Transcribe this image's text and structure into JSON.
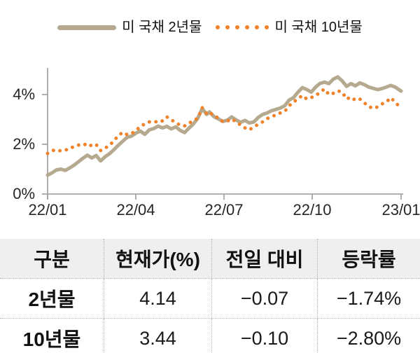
{
  "chart_data": {
    "type": "line",
    "title": "",
    "legend_position": "top-center",
    "x_axis": {
      "tick_labels": [
        "22/01",
        "22/04",
        "22/07",
        "22/10",
        "23/01"
      ],
      "range_months": [
        0,
        12
      ],
      "grid": false
    },
    "y_axis": {
      "tick_labels": [
        "0%",
        "2%",
        "4%"
      ],
      "tick_values": [
        0,
        2,
        4
      ],
      "range": [
        0,
        5.3
      ],
      "unit": "%",
      "grid": false
    },
    "series": [
      {
        "name": "미 국채 2년물",
        "style": "solid",
        "color": "#b5a98f",
        "points": [
          [
            0,
            0.76
          ],
          [
            0.15,
            0.85
          ],
          [
            0.3,
            0.97
          ],
          [
            0.45,
            1.0
          ],
          [
            0.6,
            0.95
          ],
          [
            0.75,
            1.05
          ],
          [
            0.9,
            1.16
          ],
          [
            1.05,
            1.3
          ],
          [
            1.2,
            1.44
          ],
          [
            1.35,
            1.56
          ],
          [
            1.5,
            1.45
          ],
          [
            1.65,
            1.55
          ],
          [
            1.8,
            1.33
          ],
          [
            1.95,
            1.5
          ],
          [
            2.1,
            1.62
          ],
          [
            2.25,
            1.78
          ],
          [
            2.4,
            1.96
          ],
          [
            2.55,
            2.12
          ],
          [
            2.7,
            2.28
          ],
          [
            2.85,
            2.33
          ],
          [
            3.0,
            2.45
          ],
          [
            3.15,
            2.53
          ],
          [
            3.3,
            2.4
          ],
          [
            3.45,
            2.58
          ],
          [
            3.6,
            2.63
          ],
          [
            3.75,
            2.73
          ],
          [
            3.9,
            2.66
          ],
          [
            4.05,
            2.72
          ],
          [
            4.2,
            2.62
          ],
          [
            4.35,
            2.7
          ],
          [
            4.5,
            2.56
          ],
          [
            4.65,
            2.47
          ],
          [
            4.8,
            2.65
          ],
          [
            4.95,
            2.82
          ],
          [
            5.1,
            3.05
          ],
          [
            5.25,
            3.44
          ],
          [
            5.4,
            3.2
          ],
          [
            5.5,
            3.3
          ],
          [
            5.65,
            3.11
          ],
          [
            5.8,
            3.02
          ],
          [
            5.95,
            2.92
          ],
          [
            6.1,
            2.97
          ],
          [
            6.25,
            3.1
          ],
          [
            6.4,
            2.98
          ],
          [
            6.55,
            2.88
          ],
          [
            6.7,
            2.96
          ],
          [
            6.85,
            2.86
          ],
          [
            7.0,
            2.9
          ],
          [
            7.15,
            3.08
          ],
          [
            7.3,
            3.2
          ],
          [
            7.45,
            3.26
          ],
          [
            7.6,
            3.35
          ],
          [
            7.75,
            3.4
          ],
          [
            7.9,
            3.46
          ],
          [
            8.05,
            3.55
          ],
          [
            8.2,
            3.78
          ],
          [
            8.35,
            3.88
          ],
          [
            8.5,
            4.1
          ],
          [
            8.65,
            4.28
          ],
          [
            8.8,
            4.2
          ],
          [
            8.95,
            4.1
          ],
          [
            9.1,
            4.3
          ],
          [
            9.25,
            4.45
          ],
          [
            9.4,
            4.5
          ],
          [
            9.55,
            4.44
          ],
          [
            9.7,
            4.62
          ],
          [
            9.85,
            4.71
          ],
          [
            10.0,
            4.55
          ],
          [
            10.15,
            4.33
          ],
          [
            10.3,
            4.44
          ],
          [
            10.45,
            4.35
          ],
          [
            10.6,
            4.47
          ],
          [
            10.75,
            4.4
          ],
          [
            10.9,
            4.3
          ],
          [
            11.05,
            4.25
          ],
          [
            11.2,
            4.2
          ],
          [
            11.35,
            4.24
          ],
          [
            11.5,
            4.3
          ],
          [
            11.65,
            4.37
          ],
          [
            11.8,
            4.3
          ],
          [
            12.0,
            4.14
          ]
        ]
      },
      {
        "name": "미 국채 10년물",
        "style": "dotted",
        "color": "#f08229",
        "points": [
          [
            0,
            1.63
          ],
          [
            0.15,
            1.74
          ],
          [
            0.3,
            1.78
          ],
          [
            0.45,
            1.73
          ],
          [
            0.6,
            1.77
          ],
          [
            0.75,
            1.81
          ],
          [
            0.9,
            1.92
          ],
          [
            1.05,
            1.97
          ],
          [
            1.2,
            1.95
          ],
          [
            1.35,
            2.04
          ],
          [
            1.5,
            1.93
          ],
          [
            1.65,
            1.99
          ],
          [
            1.8,
            1.75
          ],
          [
            1.95,
            1.85
          ],
          [
            2.1,
            1.95
          ],
          [
            2.25,
            2.14
          ],
          [
            2.4,
            2.35
          ],
          [
            2.55,
            2.48
          ],
          [
            2.7,
            2.39
          ],
          [
            2.85,
            2.43
          ],
          [
            3.0,
            2.55
          ],
          [
            3.15,
            2.72
          ],
          [
            3.3,
            2.82
          ],
          [
            3.45,
            2.9
          ],
          [
            3.6,
            2.93
          ],
          [
            3.75,
            2.88
          ],
          [
            3.9,
            2.94
          ],
          [
            4.05,
            3.1
          ],
          [
            4.2,
            2.98
          ],
          [
            4.35,
            2.88
          ],
          [
            4.5,
            2.76
          ],
          [
            4.65,
            2.74
          ],
          [
            4.8,
            2.85
          ],
          [
            4.95,
            2.95
          ],
          [
            5.1,
            3.05
          ],
          [
            5.25,
            3.47
          ],
          [
            5.4,
            3.23
          ],
          [
            5.5,
            3.3
          ],
          [
            5.65,
            3.12
          ],
          [
            5.8,
            3.07
          ],
          [
            5.95,
            2.9
          ],
          [
            6.1,
            2.93
          ],
          [
            6.25,
            3.02
          ],
          [
            6.4,
            2.9
          ],
          [
            6.55,
            2.78
          ],
          [
            6.7,
            2.66
          ],
          [
            6.85,
            2.58
          ],
          [
            7.0,
            2.7
          ],
          [
            7.15,
            2.8
          ],
          [
            7.3,
            2.9
          ],
          [
            7.45,
            3.03
          ],
          [
            7.6,
            3.1
          ],
          [
            7.75,
            3.18
          ],
          [
            7.9,
            3.26
          ],
          [
            8.05,
            3.32
          ],
          [
            8.2,
            3.55
          ],
          [
            8.35,
            3.7
          ],
          [
            8.5,
            3.83
          ],
          [
            8.65,
            3.96
          ],
          [
            8.8,
            3.82
          ],
          [
            8.95,
            3.88
          ],
          [
            9.1,
            3.95
          ],
          [
            9.25,
            4.1
          ],
          [
            9.4,
            4.22
          ],
          [
            9.55,
            4.0
          ],
          [
            9.7,
            4.05
          ],
          [
            9.85,
            4.15
          ],
          [
            10.0,
            4.1
          ],
          [
            10.15,
            3.82
          ],
          [
            10.3,
            3.9
          ],
          [
            10.45,
            3.77
          ],
          [
            10.6,
            3.82
          ],
          [
            10.75,
            3.67
          ],
          [
            10.9,
            3.52
          ],
          [
            11.05,
            3.44
          ],
          [
            11.2,
            3.5
          ],
          [
            11.35,
            3.62
          ],
          [
            11.5,
            3.7
          ],
          [
            11.65,
            3.87
          ],
          [
            11.8,
            3.7
          ],
          [
            12.0,
            3.44
          ]
        ]
      }
    ]
  },
  "table": {
    "headers": [
      "구분",
      "현재가(%)",
      "전일 대비",
      "등락률"
    ],
    "rows": [
      {
        "label": "2년물",
        "current": "4.14",
        "day_change": "−0.07",
        "change_rate": "−1.74%"
      },
      {
        "label": "10년물",
        "current": "3.44",
        "day_change": "−0.10",
        "change_rate": "−2.80%"
      }
    ]
  },
  "colors": {
    "axis": "#a6a6a6",
    "table_header_bg": "#efefef"
  }
}
